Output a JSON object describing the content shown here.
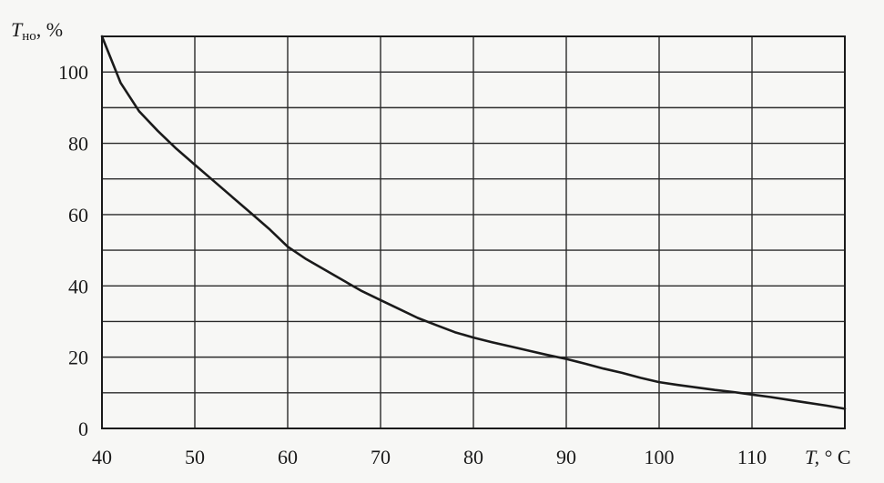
{
  "chart_data": {
    "type": "line",
    "ylabel_main": "T",
    "ylabel_sub": "но",
    "ylabel_unit": ", %",
    "xlabel_main": "T,",
    "xlabel_unit": " ° C",
    "xlim": [
      40,
      120
    ],
    "ylim": [
      0,
      110
    ],
    "x_ticks": [
      40,
      50,
      60,
      70,
      80,
      90,
      100,
      110
    ],
    "x_tick_labels": [
      "40",
      "50",
      "60",
      "70",
      "80",
      "90",
      "100",
      "110"
    ],
    "y_ticks": [
      0,
      20,
      40,
      60,
      80,
      100
    ],
    "y_tick_labels": [
      "0",
      "20",
      "40",
      "60",
      "80",
      "100"
    ],
    "x_grid": [
      40,
      50,
      60,
      70,
      80,
      90,
      100,
      110,
      120
    ],
    "y_grid": [
      0,
      10,
      20,
      30,
      40,
      50,
      60,
      70,
      80,
      90,
      100,
      110
    ],
    "grid": true,
    "series": [
      {
        "x": [
          40,
          42,
          44,
          46,
          48,
          50,
          52,
          54,
          56,
          58,
          60,
          62,
          64,
          66,
          68,
          70,
          72,
          74,
          76,
          78,
          80,
          82,
          84,
          86,
          88,
          90,
          92,
          94,
          96,
          98,
          100,
          102,
          104,
          106,
          108,
          110,
          112,
          114,
          116,
          118,
          120
        ],
        "y": [
          110,
          97,
          89,
          83.5,
          78.5,
          74,
          69.5,
          65,
          60.5,
          56,
          51,
          47.5,
          44.5,
          41.5,
          38.5,
          36,
          33.5,
          31,
          29,
          27,
          25.5,
          24.2,
          23,
          21.8,
          20.6,
          19.5,
          18.2,
          16.8,
          15.6,
          14.2,
          13,
          12.2,
          11.5,
          10.8,
          10.2,
          9.5,
          8.8,
          8,
          7.2,
          6.4,
          5.5
        ]
      }
    ]
  }
}
